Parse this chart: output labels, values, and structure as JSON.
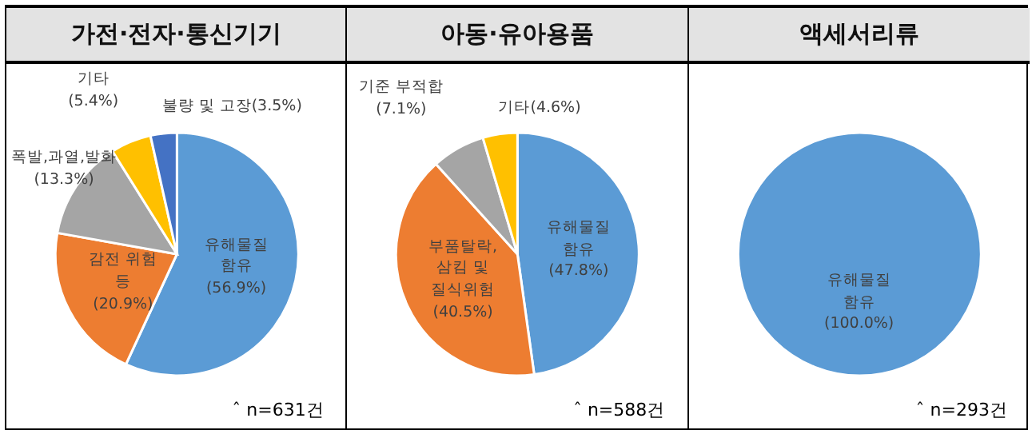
{
  "chart_data": [
    {
      "type": "pie",
      "title": "가전·전자·통신기기",
      "categories": [
        "유해물질 함유",
        "감전 위험 등",
        "폭발,과열,발화",
        "기타",
        "불량 및 고장"
      ],
      "values": [
        56.9,
        20.9,
        13.3,
        5.4,
        3.5
      ],
      "value_labels": [
        "(56.9%)",
        "(20.9%)",
        "(13.3%)",
        "(5.4%)",
        "(3.5%)"
      ],
      "colors": [
        "#5b9bd5",
        "#ed7d31",
        "#a5a5a5",
        "#ffc000",
        "#4472c4"
      ],
      "annotations": [
        "ˆ n=631건"
      ]
    },
    {
      "type": "pie",
      "title": "아동·유아용품",
      "categories": [
        "유해물질 함유",
        "부품탈락, 삼킴 및 질식위험",
        "기준 부적합",
        "기타"
      ],
      "values": [
        47.8,
        40.5,
        7.1,
        4.6
      ],
      "value_labels": [
        "(47.8%)",
        "(40.5%)",
        "(7.1%)",
        "(4.6%)"
      ],
      "colors": [
        "#5b9bd5",
        "#ed7d31",
        "#a5a5a5",
        "#ffc000"
      ],
      "annotations": [
        "ˆ n=588건"
      ]
    },
    {
      "type": "pie",
      "title": "액세서리류",
      "categories": [
        "유해물질 함유"
      ],
      "values": [
        100.0
      ],
      "value_labels": [
        "(100.0%)"
      ],
      "colors": [
        "#5b9bd5"
      ],
      "annotations": [
        "ˆ n=293건"
      ]
    }
  ]
}
